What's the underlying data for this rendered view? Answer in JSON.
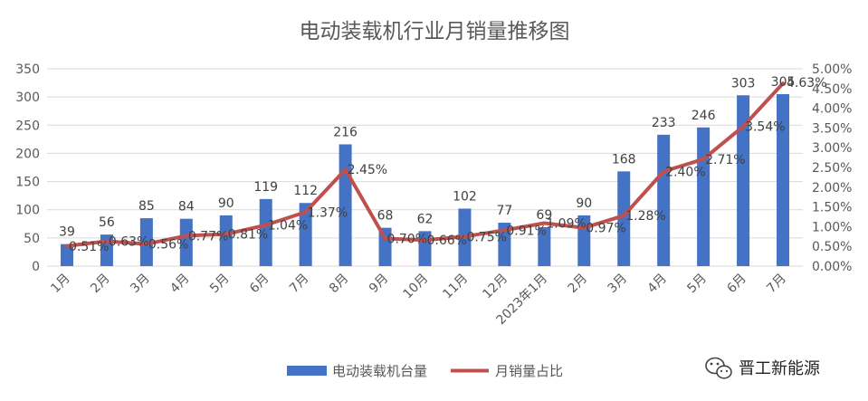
{
  "chart_data": {
    "type": "bar",
    "title": "电动装载机行业月销量推移图",
    "categories": [
      "1月",
      "2月",
      "3月",
      "4月",
      "5月",
      "6月",
      "7月",
      "8月",
      "9月",
      "10月",
      "11月",
      "12月",
      "2023年1月",
      "2月",
      "3月",
      "4月",
      "5月",
      "6月",
      "7月"
    ],
    "series": [
      {
        "name": "电动装载机台量",
        "type": "bar",
        "axis": "left",
        "color": "#4472c4",
        "values": [
          39,
          56,
          85,
          84,
          90,
          119,
          112,
          216,
          68,
          62,
          102,
          77,
          69,
          90,
          168,
          233,
          246,
          303,
          305
        ],
        "labels": [
          "39",
          "56",
          "85",
          "84",
          "90",
          "119",
          "112",
          "216",
          "68",
          "62",
          "102",
          "77",
          "69",
          "90",
          "168",
          "233",
          "246",
          "303",
          "305"
        ]
      },
      {
        "name": "月销量占比",
        "type": "line",
        "axis": "right",
        "color": "#c0504d",
        "values": [
          0.51,
          0.63,
          0.56,
          0.77,
          0.81,
          1.04,
          1.37,
          2.45,
          0.7,
          0.66,
          0.75,
          0.91,
          1.09,
          0.97,
          1.28,
          2.4,
          2.71,
          3.54,
          4.63
        ],
        "labels": [
          "0.51%",
          "0.63%",
          "0.56%",
          "0.77%",
          "0.81%",
          "1.04%",
          "1.37%",
          "2.45%",
          "0.70%",
          "0.66%",
          "0.75%",
          "0.91%",
          "1.09%",
          "0.97%",
          "1.28%",
          "2.40%",
          "2.71%",
          "3.54%",
          "4.63%"
        ]
      }
    ],
    "y_left": {
      "min": 0,
      "max": 350,
      "ticks": [
        "0",
        "50",
        "100",
        "150",
        "200",
        "250",
        "300",
        "350"
      ]
    },
    "y_right": {
      "min": 0,
      "max": 5,
      "ticks": [
        "0.00%",
        "0.50%",
        "1.00%",
        "1.50%",
        "2.00%",
        "2.50%",
        "3.00%",
        "3.50%",
        "4.00%",
        "4.50%",
        "5.00%"
      ]
    },
    "grid": true,
    "legend": {
      "position": "bottom",
      "entries": [
        "电动装载机台量",
        "月销量占比"
      ]
    }
  },
  "watermark": {
    "text": "晋工新能源",
    "icon": "wechat-icon"
  }
}
